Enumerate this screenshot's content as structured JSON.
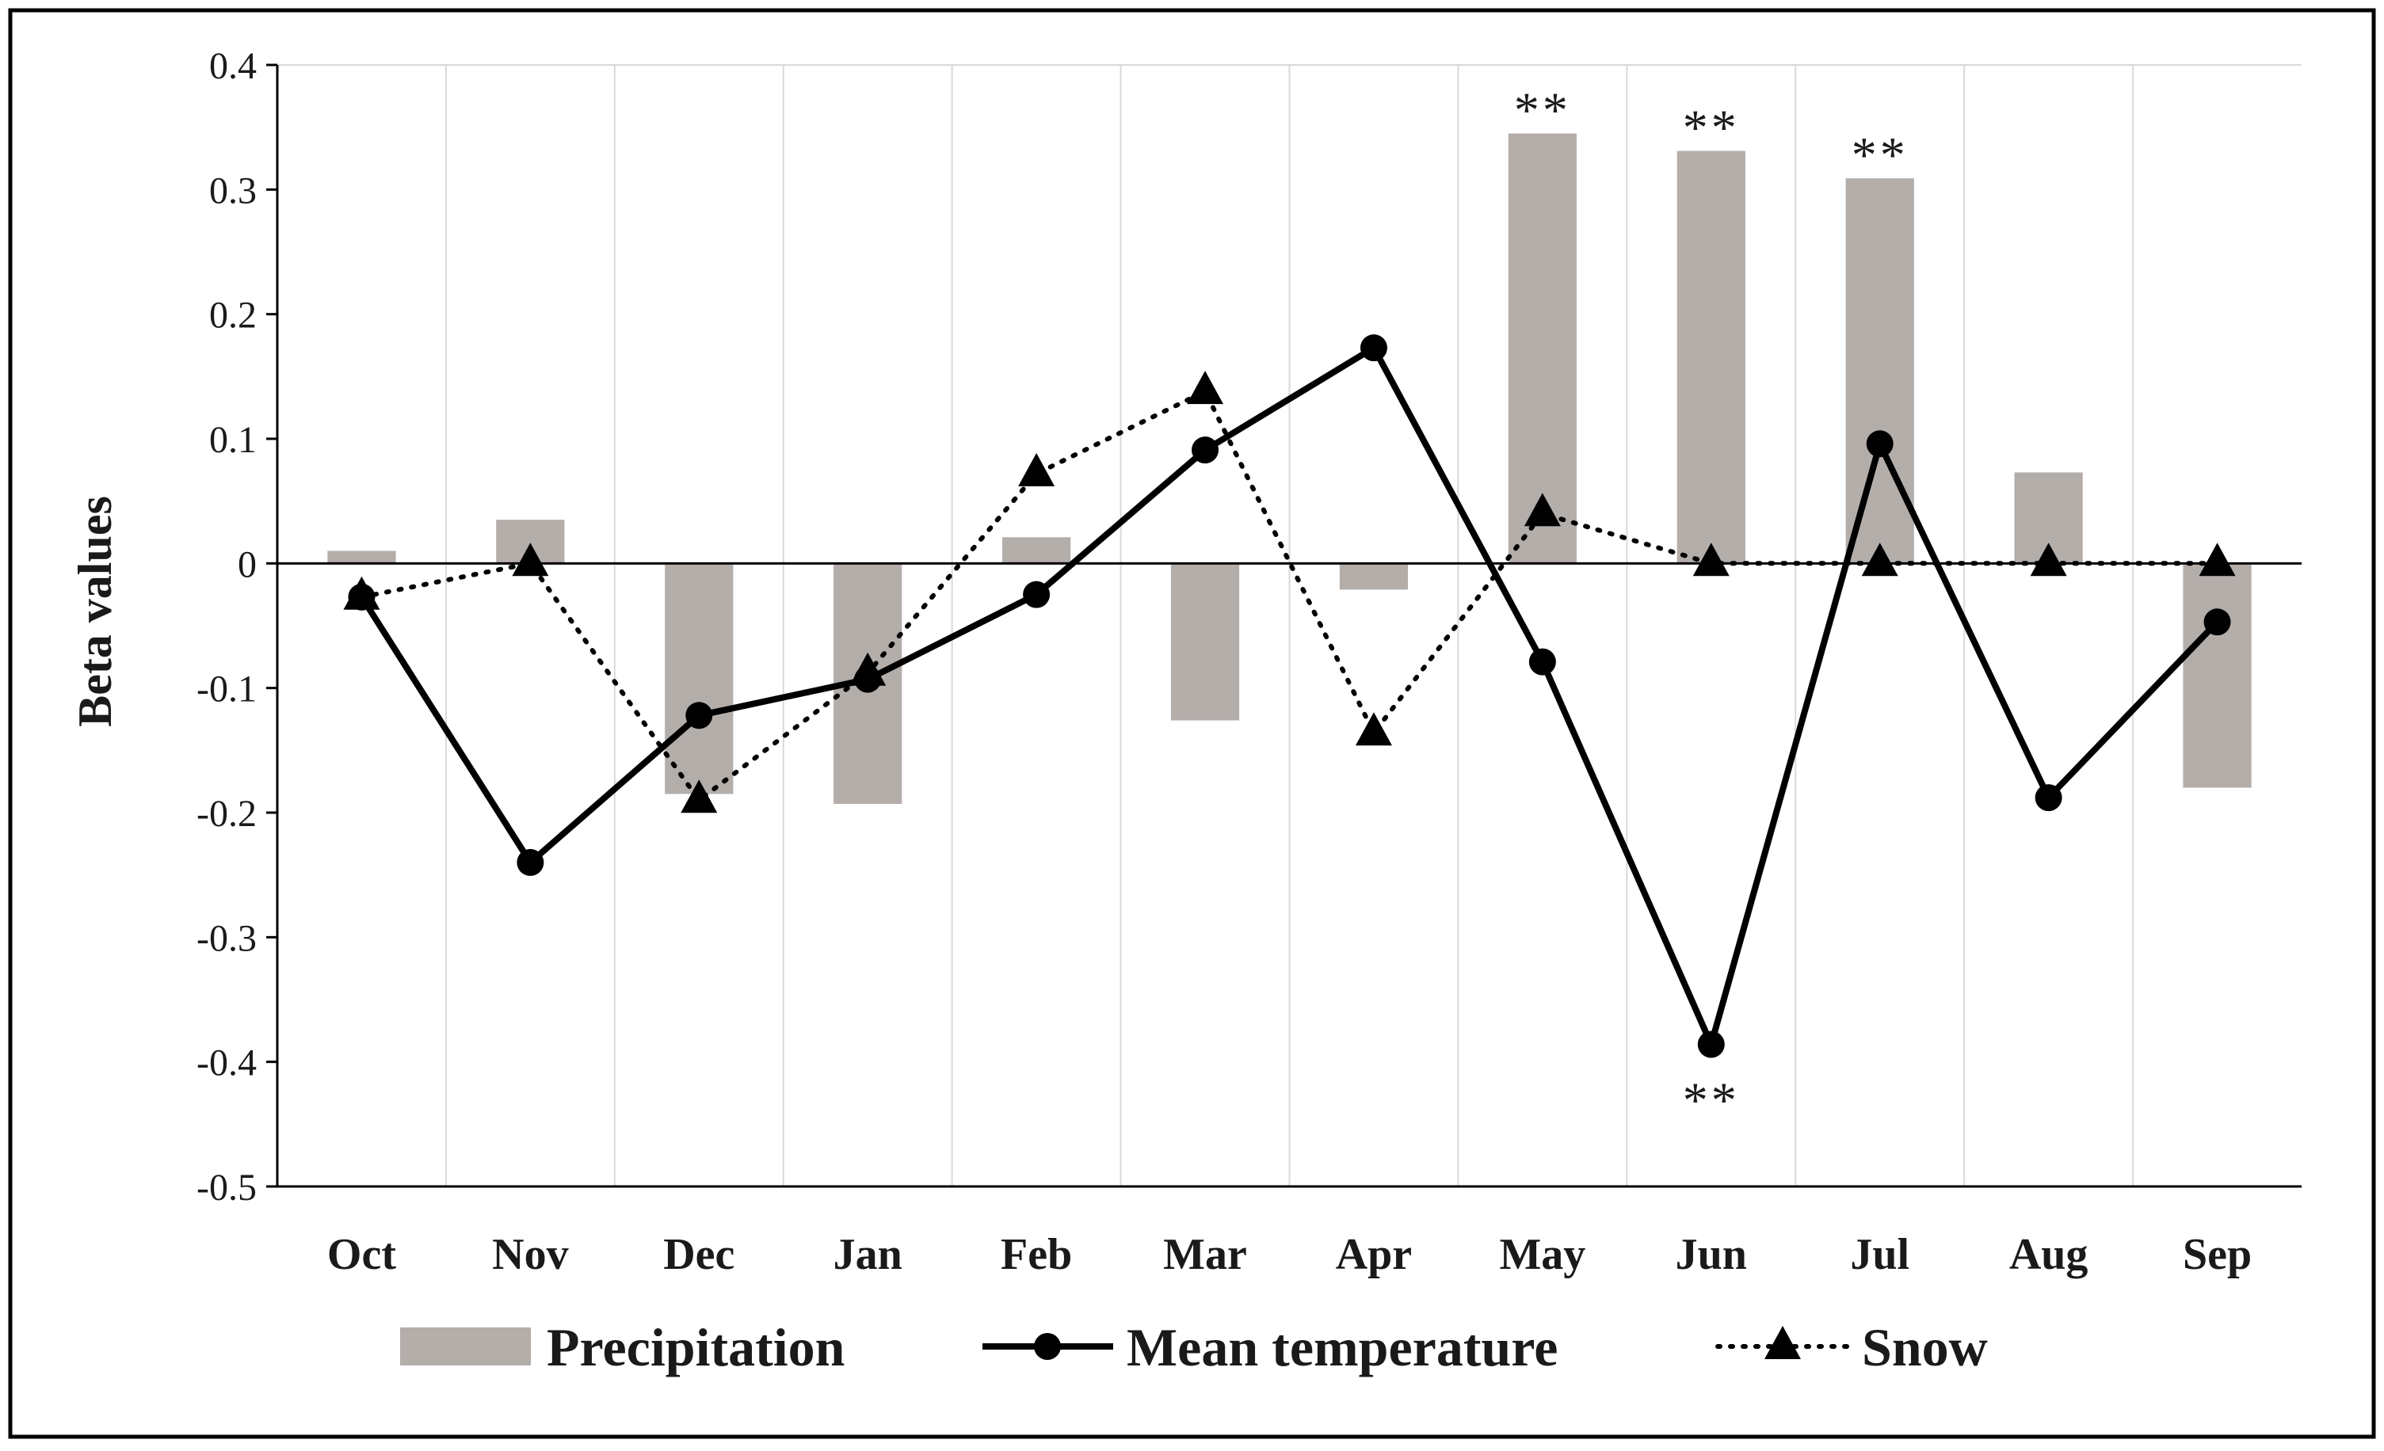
{
  "chart_data": {
    "type": "bar+line",
    "title": "",
    "xlabel": "",
    "ylabel": "Beta values",
    "ylim": [
      -0.5,
      0.4
    ],
    "yticks": [
      0.4,
      0.3,
      0.2,
      0.1,
      0,
      -0.1,
      -0.2,
      -0.3,
      -0.4,
      -0.5
    ],
    "ytick_labels": [
      "0.4",
      "0.3",
      "0.2",
      "0.1",
      "0",
      "-0.1",
      "-0.2",
      "-0.3",
      "-0.4",
      "-0.5"
    ],
    "categories": [
      "Oct",
      "Nov",
      "Dec",
      "Jan",
      "Feb",
      "Mar",
      "Apr",
      "May",
      "Jun",
      "Jul",
      "Aug",
      "Sep"
    ],
    "grid": "vertical",
    "legend_position": "bottom",
    "series": [
      {
        "name": "Precipitation",
        "kind": "bar",
        "color": "#b4aeab",
        "values": [
          0.01,
          0.035,
          -0.185,
          -0.193,
          0.021,
          -0.126,
          -0.021,
          0.345,
          0.331,
          0.309,
          0.073,
          -0.18
        ]
      },
      {
        "name": "Mean temperature",
        "kind": "line",
        "style": "solid",
        "marker": "circle",
        "color": "#000000",
        "values": [
          -0.027,
          -0.24,
          -0.122,
          -0.093,
          -0.025,
          0.091,
          0.173,
          -0.079,
          -0.386,
          0.096,
          -0.188,
          -0.047
        ]
      },
      {
        "name": "Snow",
        "kind": "line",
        "style": "dotted",
        "marker": "triangle",
        "color": "#000000",
        "values": [
          -0.027,
          0.0,
          -0.19,
          -0.088,
          0.072,
          0.138,
          -0.136,
          0.04,
          0.0,
          0.0,
          0.0,
          0.0
        ]
      }
    ],
    "annotations": [
      {
        "text": "**",
        "category": "May",
        "anchor_value": 0.345,
        "placement": "above"
      },
      {
        "text": "**",
        "category": "Jun",
        "anchor_value": 0.331,
        "placement": "above"
      },
      {
        "text": "**",
        "category": "Jul",
        "anchor_value": 0.309,
        "placement": "above"
      },
      {
        "text": "**",
        "category": "Jun",
        "anchor_value": -0.386,
        "placement": "below"
      }
    ]
  }
}
